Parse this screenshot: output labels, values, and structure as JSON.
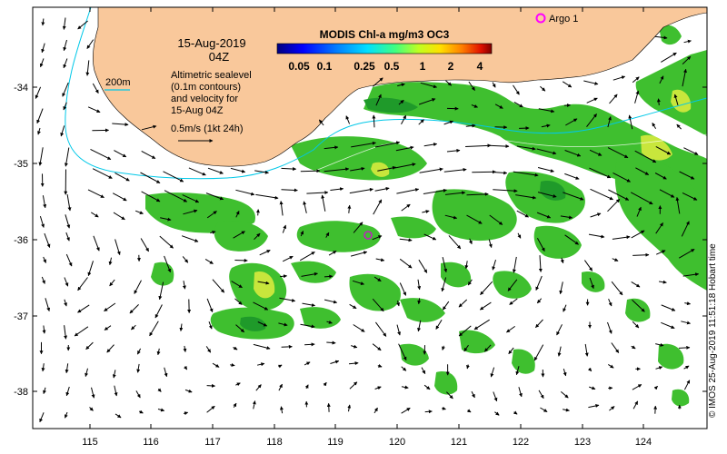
{
  "map": {
    "date": "15-Aug-2019",
    "time": "04Z",
    "colorbar_title": "MODIS Chl-a mg/m3 OC3",
    "colorbar_ticks": [
      "0.05",
      "0.1",
      "0.25",
      "0.5",
      "1",
      "2",
      "4"
    ],
    "contour_label": "200m",
    "legend_lines": [
      "Altimetric sealevel",
      "(0.1m contours)",
      "and velocity for",
      "15-Aug 04Z"
    ],
    "arrow_scale_label": "0.5m/s (1kt 24h)",
    "argo_label": "Argo 1",
    "credit": "© IMOS 25-Aug-2019 11:51:18 Hobart time",
    "x_ticks": [
      "115",
      "116",
      "117",
      "118",
      "119",
      "120",
      "121",
      "122",
      "123",
      "124"
    ],
    "y_ticks": [
      "-34",
      "-35",
      "-36",
      "-37",
      "-38"
    ],
    "colors": {
      "land": "#f9c89b",
      "chl_green": "#3fbf2f",
      "chl_dark": "#1f9a2a",
      "chl_yellow": "#c8e63c",
      "contour": "#00c8e8",
      "argo": "#ff00ff"
    }
  }
}
